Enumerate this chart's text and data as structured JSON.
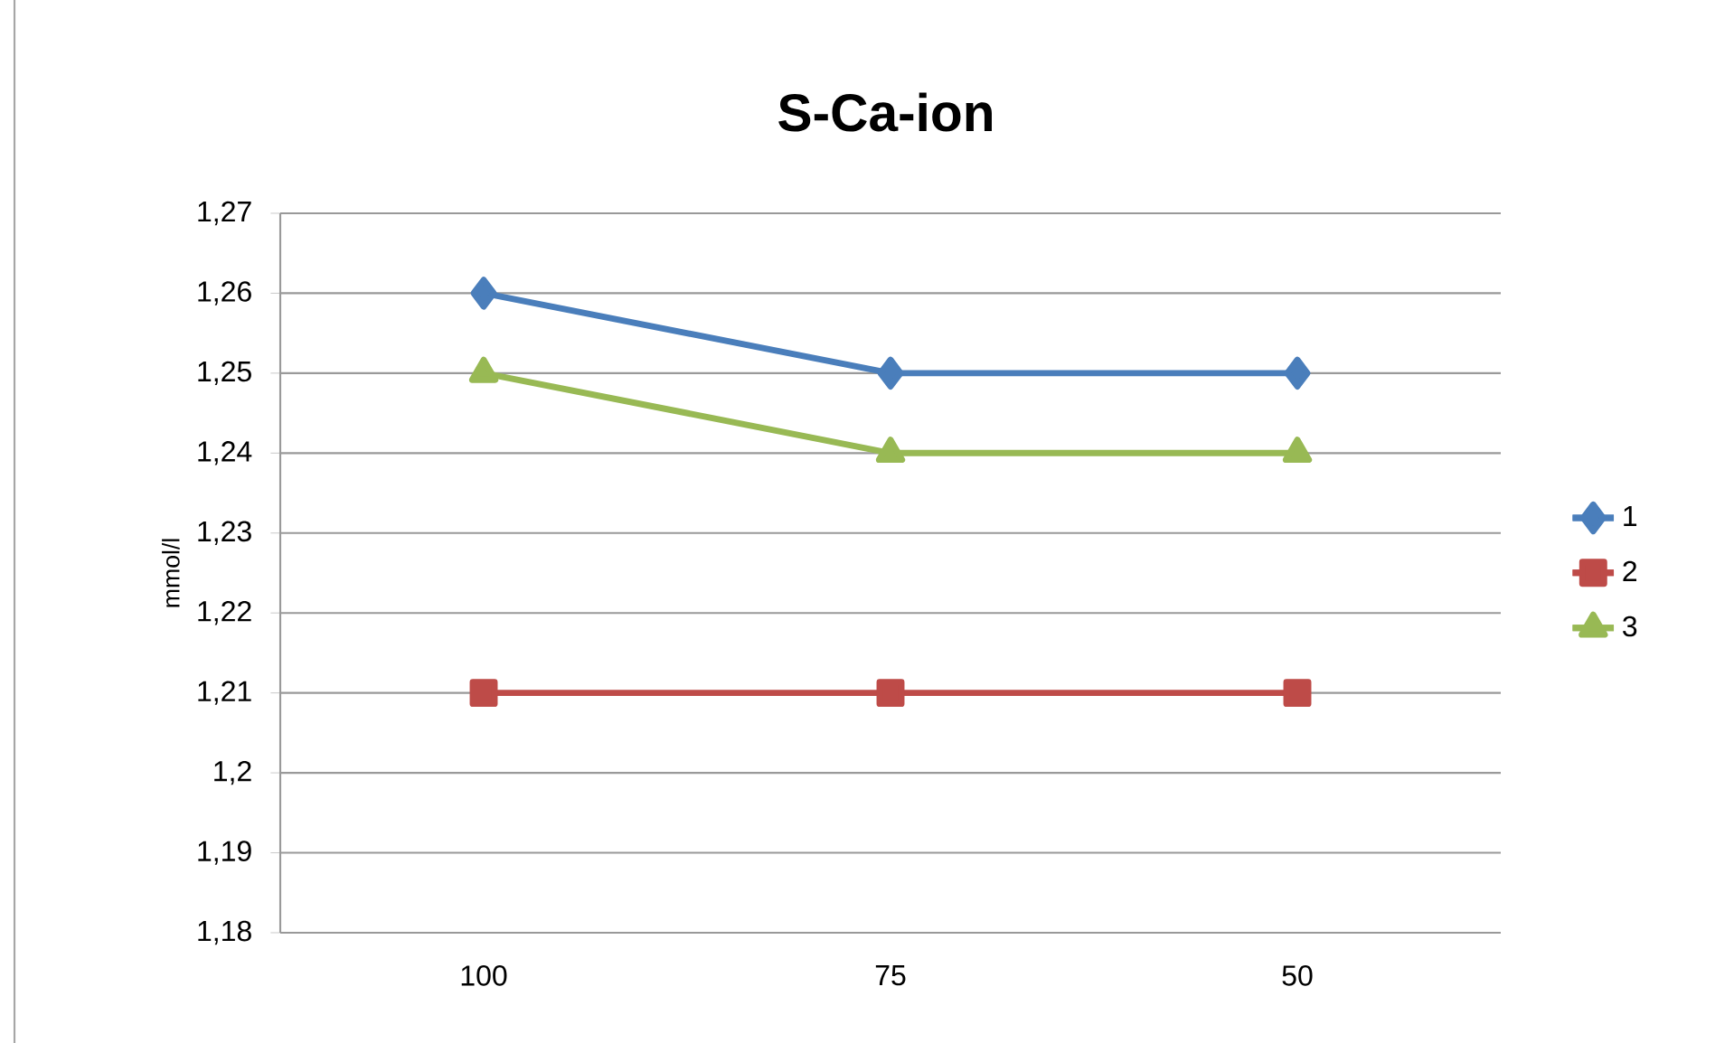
{
  "chart_data": {
    "type": "line",
    "title": "S-Ca-ion",
    "ylabel": "mmol/l",
    "categories": [
      "100",
      "75",
      "50"
    ],
    "series": [
      {
        "name": "1",
        "color": "#4a7ebb",
        "marker": "diamond",
        "values": [
          1.26,
          1.25,
          1.25
        ]
      },
      {
        "name": "2",
        "color": "#be4b48",
        "marker": "square",
        "values": [
          1.21,
          1.21,
          1.21
        ]
      },
      {
        "name": "3",
        "color": "#98b954",
        "marker": "triangle",
        "values": [
          1.25,
          1.24,
          1.24
        ]
      }
    ],
    "ylim": [
      1.18,
      1.27
    ],
    "yticks": [
      {
        "value": 1.18,
        "label": "1,18"
      },
      {
        "value": 1.19,
        "label": "1,19"
      },
      {
        "value": 1.2,
        "label": "1,2"
      },
      {
        "value": 1.21,
        "label": "1,21"
      },
      {
        "value": 1.22,
        "label": "1,22"
      },
      {
        "value": 1.23,
        "label": "1,23"
      },
      {
        "value": 1.24,
        "label": "1,24"
      },
      {
        "value": 1.25,
        "label": "1,25"
      },
      {
        "value": 1.26,
        "label": "1,26"
      },
      {
        "value": 1.27,
        "label": "1,27"
      }
    ],
    "grid": "y",
    "legend": "right",
    "line_style": "solid"
  }
}
